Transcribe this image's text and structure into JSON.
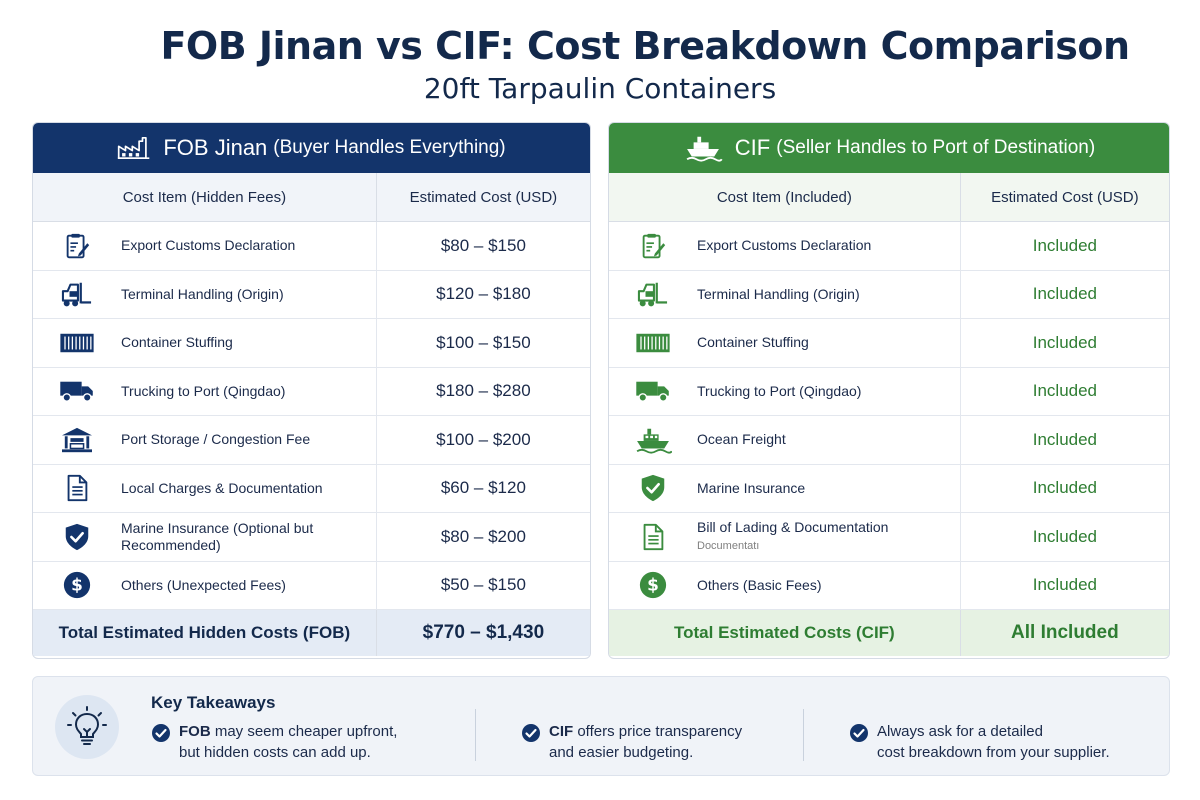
{
  "header": {
    "title": "FOB Jinan vs CIF: Cost Breakdown Comparison",
    "subtitle": "20ft Tarpaulin Containers"
  },
  "colors": {
    "navy": "#13346b",
    "green": "#3b8c3f"
  },
  "fob": {
    "title_main": "FOB Jinan",
    "title_sub": "(Buyer Handles Everything)",
    "icon": "factory-icon",
    "col1": "Cost Item (Hidden Fees)",
    "col2": "Estimated Cost (USD)",
    "rows": [
      {
        "icon": "clipboard-icon",
        "label": "Export Customs Declaration",
        "value": "$80 – $150"
      },
      {
        "icon": "forklift-icon",
        "label": "Terminal Handling (Origin)",
        "value": "$120 – $180"
      },
      {
        "icon": "container-icon",
        "label": "Container Stuffing",
        "value": "$100 – $150"
      },
      {
        "icon": "truck-icon",
        "label": "Trucking to Port (Qingdao)",
        "value": "$180 – $280"
      },
      {
        "icon": "warehouse-icon",
        "label": "Port Storage / Congestion Fee",
        "value": "$100 – $200"
      },
      {
        "icon": "document-icon",
        "label": "Local Charges & Documentation",
        "value": "$60 – $120"
      },
      {
        "icon": "shield-icon",
        "label_line1": "Marine Insurance (Optional but",
        "label_line2": "Recommended)",
        "value": "$80 – $200"
      },
      {
        "icon": "dollar-icon",
        "label": "Others (Unexpected Fees)",
        "value": "$50 – $150"
      }
    ],
    "total_label": "Total Estimated Hidden Costs (FOB)",
    "total_value": "$770 – $1,430"
  },
  "cif": {
    "title_main": "CIF",
    "title_sub": "(Seller Handles to Port of Destination)",
    "icon": "ship-icon",
    "col1": "Cost Item (Included)",
    "col2": "Estimated Cost (USD)",
    "rows": [
      {
        "icon": "clipboard-icon",
        "label": "Export Customs Declaration",
        "value": "Included"
      },
      {
        "icon": "forklift-icon",
        "label": "Terminal Handling (Origin)",
        "value": "Included"
      },
      {
        "icon": "container-icon",
        "label": "Container Stuffing",
        "value": "Included"
      },
      {
        "icon": "truck-icon",
        "label": "Trucking to Port (Qingdao)",
        "value": "Included"
      },
      {
        "icon": "ship-icon",
        "label": "Ocean Freight",
        "value": "Included"
      },
      {
        "icon": "shield-icon",
        "label": "Marine Insurance",
        "value": "Included"
      },
      {
        "icon": "document-icon",
        "label": "Bill of Lading & Documentation",
        "ghost": "Documentatı",
        "value": "Included"
      },
      {
        "icon": "dollar-icon",
        "label": "Others (Basic Fees)",
        "value": "Included"
      }
    ],
    "total_label": "Total Estimated Costs (CIF)",
    "total_value": "All Included"
  },
  "takeaways": {
    "title": "Key Takeaways",
    "icon": "lightbulb-icon",
    "items": [
      {
        "bold": "FOB",
        "line1": " may seem cheaper upfront,",
        "line2": "but hidden costs can add up."
      },
      {
        "bold": "CIF",
        "line1": " offers price transparency",
        "line2": "and easier budgeting."
      },
      {
        "bold": "",
        "line1": "Always ask for a detailed",
        "line2": "cost breakdown from your supplier."
      }
    ]
  }
}
